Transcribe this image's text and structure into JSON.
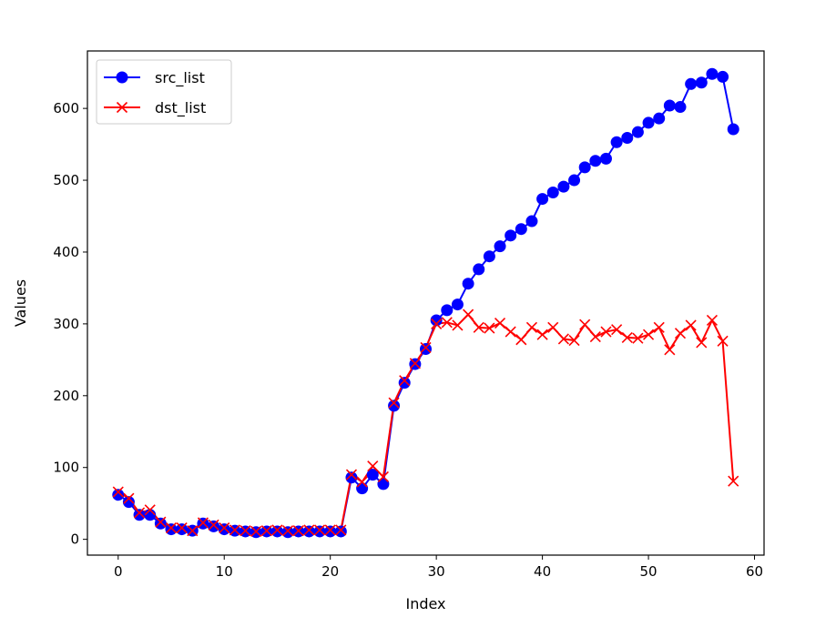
{
  "chart_data": {
    "type": "line",
    "title": "",
    "xlabel": "Index",
    "ylabel": "Values",
    "xlim": [
      -2.9,
      60.9
    ],
    "ylim": [
      -22,
      680
    ],
    "xticks": [
      0,
      10,
      20,
      30,
      40,
      50,
      60
    ],
    "yticks": [
      0,
      100,
      200,
      300,
      400,
      500,
      600
    ],
    "grid": false,
    "legend_position": "top-left",
    "x": [
      0,
      1,
      2,
      3,
      4,
      5,
      6,
      7,
      8,
      9,
      10,
      11,
      12,
      13,
      14,
      15,
      16,
      17,
      18,
      19,
      20,
      21,
      22,
      23,
      24,
      25,
      26,
      27,
      28,
      29,
      30,
      31,
      32,
      33,
      34,
      35,
      36,
      37,
      38,
      39,
      40,
      41,
      42,
      43,
      44,
      45,
      46,
      47,
      48,
      49,
      50,
      51,
      52,
      53,
      54,
      55,
      56,
      57,
      58
    ],
    "series": [
      {
        "name": "src_list",
        "color": "#0000ff",
        "marker": "circle",
        "values": [
          62,
          52,
          34,
          34,
          22,
          14,
          14,
          12,
          22,
          18,
          14,
          12,
          11,
          10,
          11,
          11,
          10,
          11,
          11,
          11,
          11,
          11,
          86,
          71,
          90,
          77,
          186,
          218,
          244,
          265,
          305,
          319,
          327,
          356,
          376,
          394,
          408,
          423,
          432,
          443,
          474,
          483,
          491,
          500,
          518,
          527,
          530,
          553,
          559,
          567,
          580,
          586,
          604,
          602,
          634,
          636,
          648,
          644,
          571
        ]
      },
      {
        "name": "dst_list",
        "color": "#ff0000",
        "marker": "x",
        "values": [
          66,
          57,
          37,
          41,
          24,
          16,
          16,
          12,
          23,
          20,
          16,
          13,
          12,
          11,
          12,
          13,
          12,
          12,
          13,
          13,
          13,
          13,
          90,
          80,
          102,
          87,
          190,
          221,
          245,
          267,
          300,
          302,
          298,
          313,
          295,
          294,
          301,
          289,
          278,
          295,
          285,
          295,
          279,
          277,
          299,
          282,
          289,
          292,
          281,
          280,
          285,
          295,
          264,
          287,
          298,
          274,
          305,
          276,
          81
        ]
      }
    ]
  }
}
